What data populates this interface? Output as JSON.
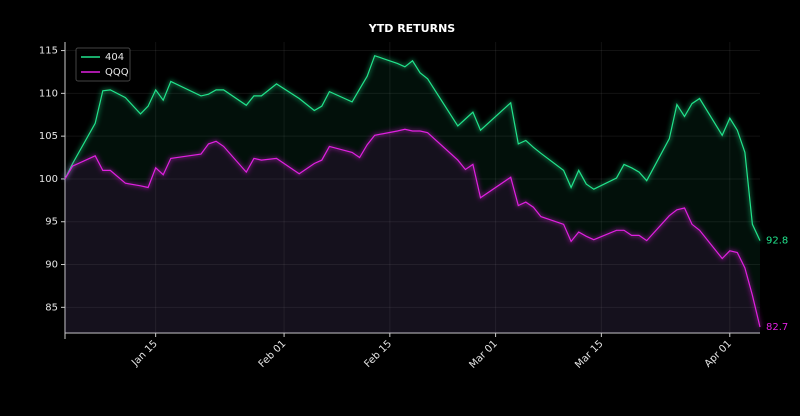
{
  "chart_data": {
    "type": "line",
    "title": "YTD RETURNS",
    "x": [
      "Jan 03",
      "Jan 04",
      "Jan 07",
      "Jan 08",
      "Jan 09",
      "Jan 11",
      "Jan 13",
      "Jan 14",
      "Jan 15",
      "Jan 16",
      "Jan 17",
      "Jan 21",
      "Jan 22",
      "Jan 23",
      "Jan 24",
      "Jan 27",
      "Jan 28",
      "Jan 29",
      "Jan 31",
      "Feb 03",
      "Feb 05",
      "Feb 06",
      "Feb 07",
      "Feb 10",
      "Feb 11",
      "Feb 12",
      "Feb 13",
      "Feb 16",
      "Feb 17",
      "Feb 18",
      "Feb 19",
      "Feb 20",
      "Feb 24",
      "Feb 25",
      "Feb 26",
      "Feb 27",
      "Mar 03",
      "Mar 04",
      "Mar 05",
      "Mar 06",
      "Mar 07",
      "Mar 10",
      "Mar 11",
      "Mar 12",
      "Mar 13",
      "Mar 14",
      "Mar 17",
      "Mar 18",
      "Mar 19",
      "Mar 20",
      "Mar 21",
      "Mar 24",
      "Mar 25",
      "Mar 26",
      "Mar 27",
      "Mar 28",
      "Mar 31",
      "Apr 01",
      "Apr 02",
      "Apr 03",
      "Apr 04",
      "Apr 05"
    ],
    "series": [
      {
        "name": "404",
        "color": "#21e38c",
        "values": [
          100,
          101.8,
          106.5,
          110.3,
          110.4,
          109.5,
          107.6,
          108.5,
          110.4,
          109.2,
          111.4,
          109.7,
          109.9,
          110.4,
          110.4,
          108.6,
          109.7,
          109.7,
          111.1,
          109.4,
          108.0,
          108.5,
          110.2,
          109.0,
          110.5,
          112.0,
          114.4,
          113.5,
          113.1,
          113.8,
          112.4,
          111.7,
          106.2,
          107.0,
          107.8,
          105.7,
          108.9,
          104.1,
          104.5,
          103.7,
          103.0,
          101.0,
          99.0,
          101.0,
          99.4,
          98.8,
          100.1,
          101.7,
          101.3,
          100.8,
          99.8,
          104.7,
          108.7,
          107.3,
          108.8,
          109.4,
          105.1,
          107.1,
          105.7,
          103.1,
          94.7,
          92.8
        ]
      },
      {
        "name": "QQQ",
        "color": "#e020e0",
        "values": [
          100,
          101.5,
          102.7,
          101.0,
          101.0,
          99.5,
          99.2,
          99.0,
          101.3,
          100.5,
          102.4,
          102.9,
          104.1,
          104.4,
          103.8,
          100.8,
          102.4,
          102.2,
          102.4,
          100.6,
          101.8,
          102.2,
          103.8,
          103.1,
          102.5,
          104.0,
          105.1,
          105.6,
          105.8,
          105.6,
          105.6,
          105.4,
          102.2,
          101.1,
          101.7,
          97.8,
          100.2,
          96.9,
          97.3,
          96.7,
          95.6,
          94.7,
          92.7,
          93.8,
          93.3,
          92.9,
          94.0,
          94.0,
          93.4,
          93.4,
          92.8,
          95.7,
          96.4,
          96.6,
          94.7,
          94.0,
          90.7,
          91.6,
          91.4,
          89.6,
          86.4,
          82.7
        ]
      }
    ],
    "xlim": [
      "Jan 03",
      "Apr 05"
    ],
    "xticks": [
      "Jan 15",
      "Feb 01",
      "Feb 15",
      "Mar 01",
      "Mar 15",
      "Apr 01"
    ],
    "ylim": [
      82,
      116
    ],
    "yticks": [
      85,
      90,
      95,
      100,
      105,
      110,
      115
    ],
    "grid": true,
    "legend": "upper left"
  }
}
